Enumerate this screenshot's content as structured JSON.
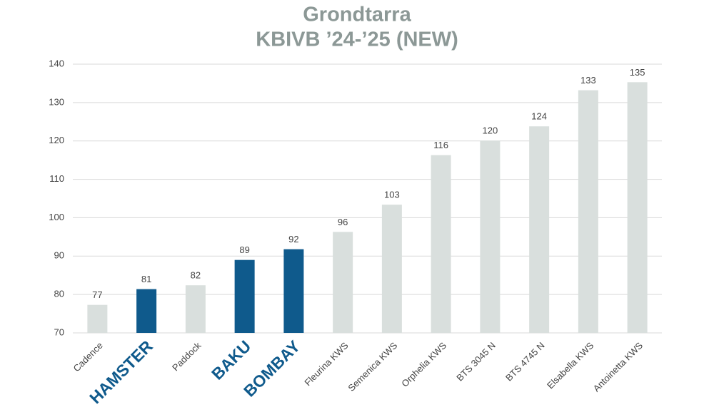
{
  "chart_data": {
    "type": "bar",
    "title": "Grondtarra",
    "subtitle": "KBIVB ’24-’25 (NEW)",
    "categories": [
      "Cadence",
      "HAMSTER",
      "Paddock",
      "BAKU",
      "BOMBAY",
      "Fleurina KWS",
      "Semenica KWS",
      "Orphelia KWS",
      "BTS 3045 N",
      "BTS 4745 N",
      "Elsabella KWS",
      "Antoinetta KWS"
    ],
    "values": [
      77.3,
      81.4,
      82.4,
      89,
      91.8,
      96.3,
      103.4,
      116.3,
      120.1,
      123.8,
      133.2,
      135.3
    ],
    "value_labels": [
      "77",
      "81",
      "82",
      "89",
      "92",
      "96",
      "103",
      "116",
      "120",
      "124",
      "133",
      "135"
    ],
    "highlighted": [
      false,
      true,
      false,
      true,
      true,
      false,
      false,
      false,
      false,
      false,
      false,
      false
    ],
    "color": "#d9dfdd",
    "highlight_color": "#0f5a8c",
    "ylim": [
      70,
      140
    ],
    "yticks": [
      70,
      80,
      90,
      100,
      110,
      120,
      130,
      140
    ],
    "grid": true
  }
}
